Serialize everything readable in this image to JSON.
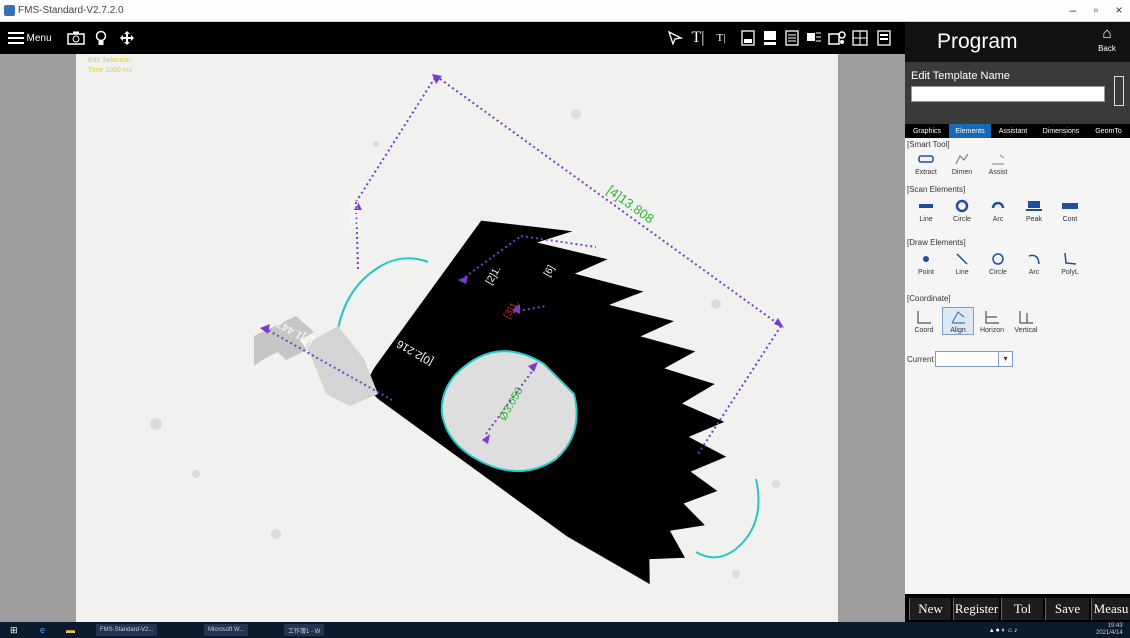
{
  "window": {
    "title": "FMS-Standard-V2.7.2.0",
    "min": "–",
    "max": "▫",
    "close": "×"
  },
  "toolbar": {
    "menu_label": "Menu",
    "text_icon_1": "T|",
    "text_icon_2": "T|"
  },
  "canvas": {
    "info_line_1": "Edit Selection",
    "info_line_2": "Time  1000 ms",
    "dimensions": {
      "d4": "[4]13.808",
      "d1": "[1]1.5",
      "d7": "[7]1.447",
      "d0": "[0]2.216",
      "d2": "[2]1.",
      "d6": "[6]",
      "d3": "[3]1.",
      "dia": "Ø3.058"
    }
  },
  "program": {
    "title": "Program",
    "back_label": "Back",
    "template_label": "Edit Template Name",
    "template_value": "",
    "tabs": [
      "Graphics",
      "Elements",
      "Assistant",
      "Dimensions",
      "GeomTo"
    ],
    "active_tab": "Elements",
    "sections": {
      "smart_tool": "[Smart Tool]",
      "scan_elements": "[Scan Elements]",
      "draw_elements": "[Draw Elements]",
      "coordinate": "[Coordinate]"
    },
    "smart_tools": [
      "Extract",
      "Dimen",
      "Assist"
    ],
    "scan_tools": [
      "Line",
      "Circle",
      "Arc",
      "Peak",
      "Cont"
    ],
    "draw_tools": [
      "Point",
      "Line",
      "Circle",
      "Arc",
      "PolyL"
    ],
    "coord_tools": [
      "Coord",
      "Align",
      "Horizon",
      "Vertical"
    ],
    "current_label": "Current",
    "current_value": "",
    "buttons": [
      "New",
      "Register",
      "Tol",
      "Save",
      "Measu"
    ]
  },
  "colors": {
    "part": "#000000",
    "edge": "#23c7c7",
    "dim_line": "#7a3cd0",
    "dim_text": "#2bb52b",
    "dim_text_red": "#cc2222",
    "tab_active": "#1668b8"
  },
  "taskbar": {
    "items": [
      "FMS-Standard-V2...",
      "Microsoft W...",
      "工作簿1 - W"
    ],
    "clock_time": "19:43",
    "clock_date": "2021/4/14"
  }
}
